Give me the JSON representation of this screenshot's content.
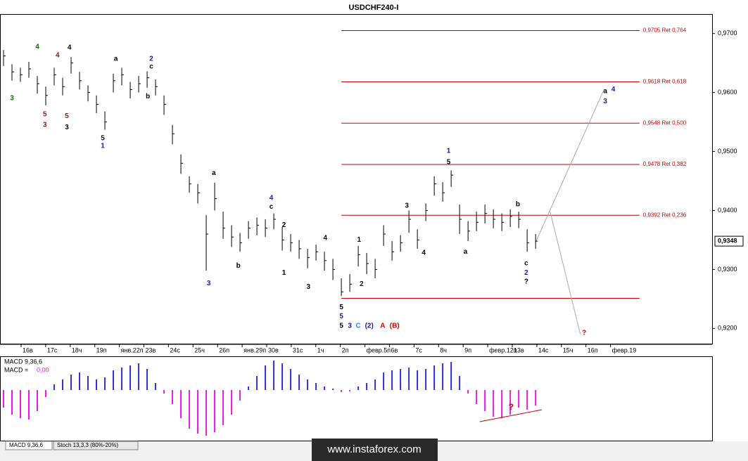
{
  "chart_data": {
    "type": "ohlc",
    "title": "USDCHF240-I",
    "xlim": [
      0,
      83.9
    ],
    "ylim": [
      0.9173,
      0.9733
    ],
    "yticks": [
      {
        "value": 0.97,
        "label": "0,9700"
      },
      {
        "value": 0.96,
        "label": "0,9600"
      },
      {
        "value": 0.95,
        "label": "0,9500"
      },
      {
        "value": 0.94,
        "label": "0,9400"
      },
      {
        "value": 0.93,
        "label": "0,9300"
      },
      {
        "value": 0.92,
        "label": "0,9200"
      }
    ],
    "x_labels": [
      "16в",
      "17c",
      "18ч",
      "19п",
      "янв.22п",
      "23в",
      "24c",
      "25ч",
      "26п",
      "янв.29п",
      "30в",
      "31c",
      "1ч",
      "2п",
      "февр.5п",
      "6в",
      "7c",
      "8ч",
      "9п",
      "февр.12п",
      "13в",
      "14c",
      "15ч",
      "16п",
      "февр.19"
    ],
    "x": [
      0,
      1,
      2,
      3,
      4,
      5,
      6,
      7,
      8,
      9,
      10,
      11,
      12,
      13,
      14,
      15,
      16,
      17,
      18,
      19,
      20,
      21,
      22,
      23,
      24,
      25,
      26,
      27,
      28,
      29,
      30,
      31,
      32,
      33,
      34,
      35,
      36,
      37,
      38,
      39,
      40,
      41,
      42,
      43,
      44,
      45,
      46,
      47,
      48,
      49,
      50,
      51,
      52,
      53,
      54,
      55,
      56,
      57,
      58,
      59,
      60,
      61,
      62,
      63
    ],
    "high": [
      0.9672,
      0.9648,
      0.9642,
      0.9652,
      0.9628,
      0.961,
      0.9642,
      0.9625,
      0.966,
      0.9635,
      0.9612,
      0.9595,
      0.9568,
      0.9632,
      0.9642,
      0.9618,
      0.9628,
      0.9636,
      0.9622,
      0.9595,
      0.9545,
      0.9495,
      0.9458,
      0.9445,
      0.9392,
      0.9447,
      0.9398,
      0.9375,
      0.9362,
      0.9382,
      0.9388,
      0.9385,
      0.9395,
      0.9372,
      0.936,
      0.935,
      0.9335,
      0.9342,
      0.933,
      0.9318,
      0.9285,
      0.9292,
      0.934,
      0.9328,
      0.9318,
      0.9375,
      0.9348,
      0.9358,
      0.94,
      0.9368,
      0.9412,
      0.9458,
      0.9448,
      0.9468,
      0.941,
      0.9382,
      0.9398,
      0.941,
      0.9402,
      0.9395,
      0.9402,
      0.9398,
      0.9368,
      0.936
    ],
    "low": [
      0.9645,
      0.962,
      0.9618,
      0.9625,
      0.9598,
      0.9578,
      0.9612,
      0.9595,
      0.9632,
      0.9605,
      0.9585,
      0.9565,
      0.9537,
      0.96,
      0.9612,
      0.959,
      0.96,
      0.9608,
      0.9595,
      0.9562,
      0.9512,
      0.9462,
      0.943,
      0.9412,
      0.9298,
      0.94,
      0.9352,
      0.9338,
      0.933,
      0.9352,
      0.9358,
      0.9355,
      0.9368,
      0.9332,
      0.933,
      0.9318,
      0.9302,
      0.9315,
      0.9298,
      0.9282,
      0.9255,
      0.9262,
      0.9305,
      0.9292,
      0.9285,
      0.934,
      0.9315,
      0.933,
      0.9362,
      0.9335,
      0.9382,
      0.9425,
      0.9415,
      0.944,
      0.936,
      0.9348,
      0.9365,
      0.9378,
      0.937,
      0.9365,
      0.9372,
      0.937,
      0.933,
      0.9335
    ],
    "close": [
      0.9662,
      0.9635,
      0.963,
      0.964,
      0.9615,
      0.9595,
      0.963,
      0.961,
      0.965,
      0.962,
      0.96,
      0.958,
      0.955,
      0.962,
      0.963,
      0.9605,
      0.9615,
      0.9625,
      0.961,
      0.958,
      0.953,
      0.948,
      0.9445,
      0.943,
      0.936,
      0.942,
      0.937,
      0.9355,
      0.9345,
      0.937,
      0.9375,
      0.937,
      0.9385,
      0.935,
      0.9345,
      0.9335,
      0.932,
      0.933,
      0.9315,
      0.93,
      0.9262,
      0.9275,
      0.9325,
      0.931,
      0.93,
      0.936,
      0.933,
      0.9345,
      0.9385,
      0.935,
      0.94,
      0.9445,
      0.943,
      0.946,
      0.9385,
      0.9365,
      0.938,
      0.9395,
      0.9385,
      0.938,
      0.939,
      0.9385,
      0.9345,
      0.9348
    ],
    "color": "#000000",
    "last_price": {
      "value": 0.9348,
      "label": "0,9348"
    },
    "level_start": 40,
    "level_end": 75.3,
    "levels": [
      {
        "value": 0.9705,
        "label": "0,9705 Ret 0,764"
      },
      {
        "value": 0.9618,
        "label": "0,9618 Ret 0,618"
      },
      {
        "value": 0.9548,
        "label": "0,9548 Ret 0,500"
      },
      {
        "value": 0.9478,
        "label": "0,9478 Ret 0,382"
      },
      {
        "value": 0.9392,
        "label": "0,9392 Ret 0,236"
      },
      {
        "value": 0.9251
      }
    ],
    "level_color": "#cc0000",
    "forecast_lines": [
      [
        [
          63,
          0.9346
        ],
        [
          71.1,
          0.9605
        ]
      ],
      [
        [
          64.7,
          0.9399
        ],
        [
          68.3,
          0.919
        ]
      ]
    ],
    "annotations": [
      {
        "text": "4",
        "x": 4.0,
        "y": 0.9677,
        "color": "#0a6e0a"
      },
      {
        "text": "3",
        "x": 1.0,
        "y": 0.959,
        "color": "#0a6e0a"
      },
      {
        "text": "4",
        "x": 6.4,
        "y": 0.9663,
        "color": "#8b1a1a"
      },
      {
        "text": "5",
        "x": 4.9,
        "y": 0.9563,
        "color": "#8b1a1a"
      },
      {
        "text": "3",
        "x": 4.9,
        "y": 0.9545,
        "color": "#8b1a1a"
      },
      {
        "text": "5",
        "x": 7.5,
        "y": 0.956,
        "color": "#8b1a1a"
      },
      {
        "text": "3",
        "x": 7.5,
        "y": 0.9541,
        "color": "#000000"
      },
      {
        "text": "4",
        "x": 7.8,
        "y": 0.9676,
        "color": "#000000"
      },
      {
        "text": "a",
        "x": 13.3,
        "y": 0.9657,
        "color": "#000000"
      },
      {
        "text": "5",
        "x": 11.75,
        "y": 0.9522,
        "color": "#000000"
      },
      {
        "text": "1",
        "x": 11.75,
        "y": 0.9509,
        "color": "#1a1aa0"
      },
      {
        "text": "2",
        "x": 17.5,
        "y": 0.9657,
        "color": "#1a1aa0"
      },
      {
        "text": "c",
        "x": 17.5,
        "y": 0.9644,
        "color": "#000000"
      },
      {
        "text": "b",
        "x": 17.1,
        "y": 0.9593,
        "color": "#000000"
      },
      {
        "text": "a",
        "x": 24.9,
        "y": 0.9463,
        "color": "#000000"
      },
      {
        "text": "3",
        "x": 24.3,
        "y": 0.9276,
        "color": "#1a1aa0"
      },
      {
        "text": "b",
        "x": 27.8,
        "y": 0.9306,
        "color": "#000000"
      },
      {
        "text": "4",
        "x": 31.7,
        "y": 0.9421,
        "color": "#1a1aa0"
      },
      {
        "text": "c",
        "x": 31.7,
        "y": 0.9406,
        "color": "#000000"
      },
      {
        "text": "2",
        "x": 33.2,
        "y": 0.9375,
        "color": "#000000"
      },
      {
        "text": "1",
        "x": 33.2,
        "y": 0.9294,
        "color": "#000000"
      },
      {
        "text": "3",
        "x": 36.1,
        "y": 0.927,
        "color": "#000000"
      },
      {
        "text": "4",
        "x": 38.1,
        "y": 0.9353,
        "color": "#000000"
      },
      {
        "text": "5",
        "x": 40,
        "y": 0.9236,
        "color": "#000000"
      },
      {
        "text": "5",
        "x": 40,
        "y": 0.922,
        "color": "#1a1aa0"
      },
      {
        "text": "1",
        "x": 42.1,
        "y": 0.935,
        "color": "#000000"
      },
      {
        "text": "2",
        "x": 42.4,
        "y": 0.9275,
        "color": "#000000"
      },
      {
        "text": "3",
        "x": 47.75,
        "y": 0.9408,
        "color": "#000000"
      },
      {
        "text": "4",
        "x": 49.75,
        "y": 0.9328,
        "color": "#000000"
      },
      {
        "text": "1",
        "x": 52.7,
        "y": 0.9501,
        "color": "#1a1aa0"
      },
      {
        "text": "5",
        "x": 52.7,
        "y": 0.9482,
        "color": "#000000"
      },
      {
        "text": "a",
        "x": 54.7,
        "y": 0.933,
        "color": "#000000"
      },
      {
        "text": "b",
        "x": 60.9,
        "y": 0.941,
        "color": "#000000"
      },
      {
        "text": "c",
        "x": 61.9,
        "y": 0.931,
        "color": "#000000"
      },
      {
        "text": "2",
        "x": 61.9,
        "y": 0.9294,
        "color": "#1a1aa0"
      },
      {
        "text": "?",
        "x": 61.9,
        "y": 0.9279,
        "color": "#000000"
      },
      {
        "text": "a",
        "x": 71.25,
        "y": 0.9602,
        "color": "#000000"
      },
      {
        "text": "4",
        "x": 72.2,
        "y": 0.9605,
        "color": "#1a1aa0"
      },
      {
        "text": "3",
        "x": 71.25,
        "y": 0.9585,
        "color": "#1a1aa0"
      },
      {
        "text": "?",
        "x": 68.75,
        "y": 0.9192,
        "color": "#cc0000"
      },
      {
        "text": "5",
        "x": 40,
        "y": 0.9204,
        "color": "#000000"
      },
      {
        "text": "3",
        "x": 41,
        "y": 0.9204,
        "color": "#1a1aa0"
      },
      {
        "text": "C",
        "x": 42,
        "y": 0.9204,
        "color": "#1e90ff"
      },
      {
        "text": "(2)",
        "x": 43.3,
        "y": 0.9204,
        "color": "#1a1aa0"
      },
      {
        "text": "A",
        "x": 44.9,
        "y": 0.9204,
        "color": "#cc0000"
      },
      {
        "text": "(B)",
        "x": 46.3,
        "y": 0.9204,
        "color": "#cc0000"
      }
    ],
    "macd_title": "MACD 9,36,6",
    "macd_value_label": "MACD =",
    "macd_value": "0,00",
    "macd_ylim": [
      -0.0073,
      0.0045
    ],
    "macd": [
      -0.0025,
      -0.0035,
      -0.004,
      -0.0042,
      -0.003,
      -0.001,
      0.0008,
      0.0015,
      0.0022,
      0.0025,
      0.002,
      0.0015,
      0.0018,
      0.0028,
      0.0032,
      0.0035,
      0.0038,
      0.003,
      0.001,
      -0.0005,
      -0.002,
      -0.004,
      -0.0055,
      -0.0062,
      -0.0065,
      -0.006,
      -0.005,
      -0.0035,
      -0.0015,
      0.0005,
      0.002,
      0.0035,
      0.0042,
      0.0038,
      0.003,
      0.0022,
      0.0015,
      0.001,
      0.0005,
      0.0002,
      -0.0003,
      -0.0002,
      0.0005,
      0.001,
      0.0015,
      0.0025,
      0.0028,
      0.003,
      0.0032,
      0.0028,
      0.003,
      0.0035,
      0.0038,
      0.004,
      0.002,
      -0.0005,
      -0.002,
      -0.003,
      -0.0038,
      -0.004,
      -0.0035,
      -0.0025,
      -0.0028,
      -0.0022
    ],
    "macd_up_color": "#3333cc",
    "macd_down_color": "#e020e0",
    "macd_line": [
      [
        56.4,
        -0.0045
      ],
      [
        63.75,
        -0.0028
      ]
    ],
    "macd_note": {
      "text": "?",
      "x": 60.1,
      "y": -0.0025
    },
    "tabs": [
      "MACD 9,36,6",
      "Stoch 13,3,3 (80%-20%)"
    ],
    "banner": "www.instaforex.com"
  }
}
